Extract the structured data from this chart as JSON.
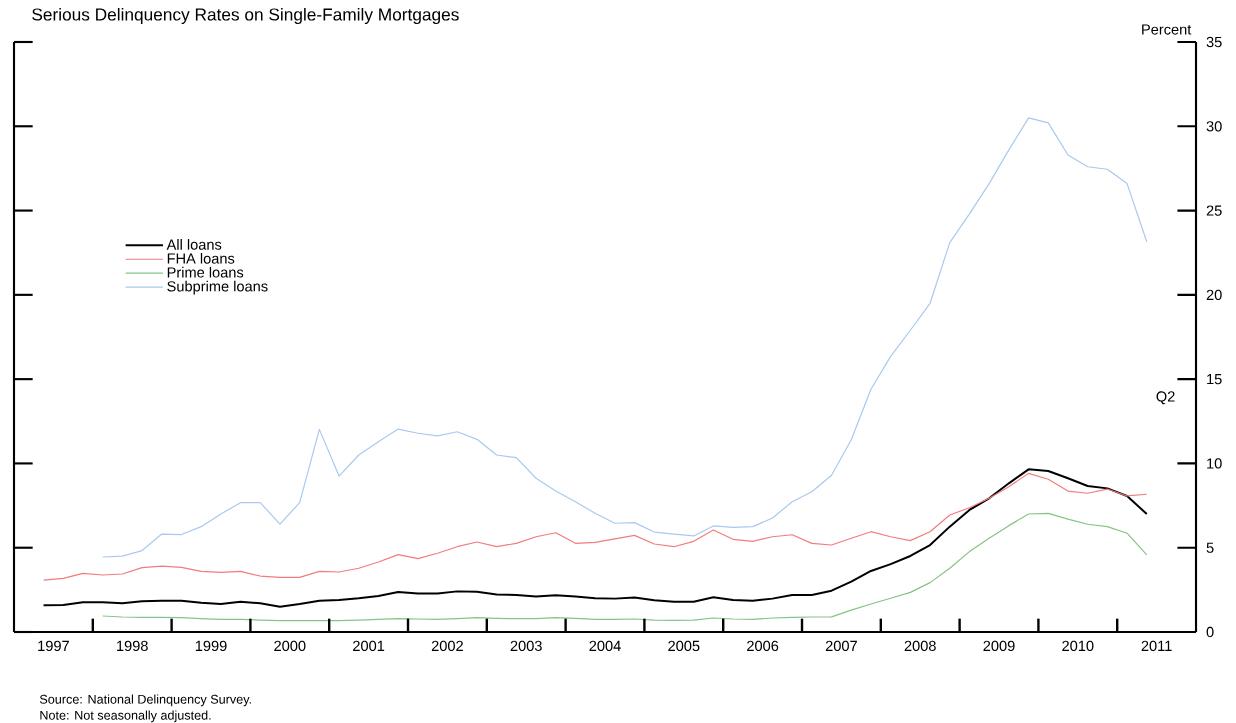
{
  "chart_data": {
    "type": "line",
    "title": "Serious Delinquency Rates on Single-Family Mortgages",
    "ylabel": "Percent",
    "annotations": [
      "Q2",
      "Source: National Delinquency Survey.",
      "Note: Not seasonally adjusted."
    ],
    "xlim": [
      1997,
      2012
    ],
    "ylim": [
      0,
      35
    ],
    "yticks": [
      0,
      5,
      10,
      15,
      20,
      25,
      30,
      35
    ],
    "xticks": [
      {
        "value": 1997.5,
        "label": "1997"
      },
      {
        "value": 1998.5,
        "label": "1998"
      },
      {
        "value": 1999.5,
        "label": "1999"
      },
      {
        "value": 2000.5,
        "label": "2000"
      },
      {
        "value": 2001.5,
        "label": "2001"
      },
      {
        "value": 2002.5,
        "label": "2002"
      },
      {
        "value": 2003.5,
        "label": "2003"
      },
      {
        "value": 2004.5,
        "label": "2004"
      },
      {
        "value": 2005.5,
        "label": "2005"
      },
      {
        "value": 2006.5,
        "label": "2006"
      },
      {
        "value": 2007.5,
        "label": "2007"
      },
      {
        "value": 2008.5,
        "label": "2008"
      },
      {
        "value": 2009.5,
        "label": "2009"
      },
      {
        "value": 2010.5,
        "label": "2010"
      },
      {
        "value": 2011.5,
        "label": "2011"
      },
      {
        "value": 1998,
        "label": null
      },
      {
        "value": 1999,
        "label": null
      },
      {
        "value": 2000,
        "label": null
      },
      {
        "value": 2001,
        "label": null
      },
      {
        "value": 2002,
        "label": null
      },
      {
        "value": 2003,
        "label": null
      },
      {
        "value": 2004,
        "label": null
      },
      {
        "value": 2005,
        "label": null
      },
      {
        "value": 2006,
        "label": null
      },
      {
        "value": 2007,
        "label": null
      },
      {
        "value": 2008,
        "label": null
      },
      {
        "value": 2009,
        "label": null
      },
      {
        "value": 2010,
        "label": null
      },
      {
        "value": 2011,
        "label": null
      }
    ],
    "legend": "left",
    "marker": "none",
    "line_style": "solid",
    "grid": false,
    "x": [
      1997.375,
      1997.625,
      1997.875,
      1998.125,
      1998.375,
      1998.625,
      1998.875,
      1999.125,
      1999.375,
      1999.625,
      1999.875,
      2000.125,
      2000.375,
      2000.625,
      2000.875,
      2001.125,
      2001.375,
      2001.625,
      2001.875,
      2002.125,
      2002.375,
      2002.625,
      2002.875,
      2003.125,
      2003.375,
      2003.625,
      2003.875,
      2004.125,
      2004.375,
      2004.625,
      2004.875,
      2005.125,
      2005.375,
      2005.625,
      2005.875,
      2006.125,
      2006.375,
      2006.625,
      2006.875,
      2007.125,
      2007.375,
      2007.625,
      2007.875,
      2008.125,
      2008.375,
      2008.625,
      2008.875,
      2009.125,
      2009.375,
      2009.625,
      2009.875,
      2010.125,
      2010.375,
      2010.625,
      2010.875,
      2011.125,
      2011.375
    ],
    "series": [
      {
        "name": "All loans",
        "color": "#000000",
        "values": [
          1.58,
          1.6,
          1.76,
          1.76,
          1.7,
          1.82,
          1.86,
          1.86,
          1.74,
          1.66,
          1.8,
          1.7,
          1.5,
          1.66,
          1.86,
          1.9,
          2.0,
          2.14,
          2.37,
          2.29,
          2.29,
          2.41,
          2.39,
          2.23,
          2.2,
          2.1,
          2.18,
          2.1,
          2.0,
          1.98,
          2.04,
          1.88,
          1.8,
          1.8,
          2.06,
          1.9,
          1.86,
          1.98,
          2.2,
          2.2,
          2.45,
          2.99,
          3.62,
          4.03,
          4.51,
          5.16,
          6.25,
          7.24,
          7.93,
          8.82,
          9.65,
          9.55,
          9.12,
          8.66,
          8.52,
          8.07,
          7.0
        ]
      },
      {
        "name": "FHA loans",
        "color": "#f27c7c",
        "values": [
          3.08,
          3.18,
          3.48,
          3.38,
          3.44,
          3.82,
          3.91,
          3.83,
          3.6,
          3.54,
          3.6,
          3.32,
          3.24,
          3.24,
          3.6,
          3.56,
          3.78,
          4.15,
          4.59,
          4.35,
          4.67,
          5.06,
          5.34,
          5.06,
          5.26,
          5.65,
          5.89,
          5.26,
          5.32,
          5.52,
          5.73,
          5.22,
          5.06,
          5.38,
          6.05,
          5.5,
          5.38,
          5.65,
          5.77,
          5.26,
          5.16,
          5.56,
          5.95,
          5.65,
          5.42,
          5.95,
          6.94,
          7.37,
          7.93,
          8.62,
          9.41,
          9.06,
          8.36,
          8.23,
          8.48,
          8.07,
          8.17
        ]
      },
      {
        "name": "Prime loans",
        "color": "#86c386",
        "values": [
          null,
          null,
          null,
          0.95,
          0.89,
          0.87,
          0.87,
          0.85,
          0.79,
          0.75,
          0.75,
          0.71,
          0.67,
          0.67,
          0.67,
          0.67,
          0.71,
          0.75,
          0.79,
          0.77,
          0.75,
          0.79,
          0.85,
          0.81,
          0.79,
          0.79,
          0.85,
          0.81,
          0.75,
          0.75,
          0.77,
          0.71,
          0.69,
          0.71,
          0.83,
          0.77,
          0.75,
          0.83,
          0.87,
          0.89,
          0.9,
          1.3,
          1.66,
          2.0,
          2.35,
          2.93,
          3.78,
          4.77,
          5.56,
          6.31,
          7.0,
          7.04,
          6.7,
          6.39,
          6.25,
          5.86,
          4.57
        ]
      },
      {
        "name": "Subprime loans",
        "color": "#a9c9ee",
        "values": [
          null,
          null,
          null,
          4.45,
          4.5,
          4.83,
          5.81,
          5.78,
          6.25,
          7.0,
          7.67,
          7.67,
          6.4,
          7.67,
          12.02,
          9.25,
          10.5,
          11.29,
          12.04,
          11.79,
          11.63,
          11.88,
          11.43,
          10.5,
          10.34,
          9.12,
          8.36,
          7.73,
          7.04,
          6.45,
          6.49,
          5.93,
          5.81,
          5.7,
          6.29,
          6.21,
          6.25,
          6.76,
          7.73,
          8.32,
          9.3,
          11.4,
          14.4,
          16.35,
          17.9,
          19.5,
          23.1,
          24.8,
          26.6,
          28.6,
          30.5,
          30.2,
          28.3,
          27.6,
          27.45,
          26.6,
          23.15
        ]
      }
    ]
  }
}
